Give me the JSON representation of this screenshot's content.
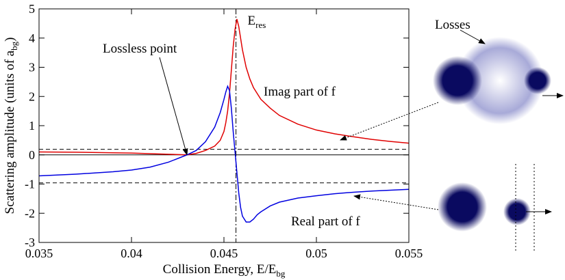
{
  "chart_data": {
    "type": "line",
    "ylabel": [
      "Scattering amplitude (units of a",
      "bg",
      ")"
    ],
    "xlabel": [
      "Collision Energy, E/E",
      "bg"
    ],
    "x": [
      0.035,
      0.037,
      0.039,
      0.04,
      0.041,
      0.042,
      0.043,
      0.0435,
      0.044,
      0.0445,
      0.0448,
      0.045,
      0.0451,
      0.0452,
      0.0453,
      0.0454,
      0.0455,
      0.0456,
      0.0457,
      0.0458,
      0.0459,
      0.046,
      0.0462,
      0.0464,
      0.0466,
      0.0468,
      0.047,
      0.0475,
      0.048,
      0.049,
      0.05,
      0.051,
      0.052,
      0.053,
      0.054,
      0.055
    ],
    "series": [
      {
        "name": "Imag part of f",
        "color": "#e00000",
        "values": [
          0.1,
          0.09,
          0.07,
          0.06,
          0.04,
          0.02,
          0,
          0.05,
          0.15,
          0.3,
          0.5,
          0.8,
          1.1,
          1.5,
          2.1,
          2.9,
          3.7,
          4.3,
          4.65,
          4.4,
          4.0,
          3.6,
          3.0,
          2.6,
          2.3,
          2.1,
          1.9,
          1.6,
          1.35,
          1.05,
          0.85,
          0.72,
          0.62,
          0.53,
          0.46,
          0.4
        ]
      },
      {
        "name": "Real part of f",
        "color": "#0000e0",
        "values": [
          -0.72,
          -0.66,
          -0.58,
          -0.52,
          -0.42,
          -0.25,
          0,
          0.15,
          0.45,
          0.95,
          1.45,
          1.9,
          2.15,
          2.35,
          2.2,
          1.6,
          0.8,
          0.1,
          -0.6,
          -1.3,
          -1.8,
          -2.1,
          -2.3,
          -2.3,
          -2.2,
          -2.05,
          -1.95,
          -1.75,
          -1.62,
          -1.48,
          -1.4,
          -1.33,
          -1.28,
          -1.24,
          -1.21,
          -1.18
        ]
      }
    ],
    "xlim": [
      0.035,
      0.055
    ],
    "xticks": [
      0.035,
      0.04,
      0.045,
      0.05,
      0.055
    ],
    "ylim": [
      -3,
      5
    ],
    "yticks": [
      -3,
      -2,
      -1,
      0,
      1,
      2,
      3,
      4,
      5
    ],
    "zero_line": 0,
    "dashed_lines": [
      0.19,
      -0.96
    ],
    "resonance": {
      "x": 0.04565,
      "label": [
        "E",
        "res"
      ]
    },
    "lossless_point": {
      "label": "Lossless point",
      "x": 0.043,
      "y": 0
    },
    "diagram_label": "Losses"
  }
}
